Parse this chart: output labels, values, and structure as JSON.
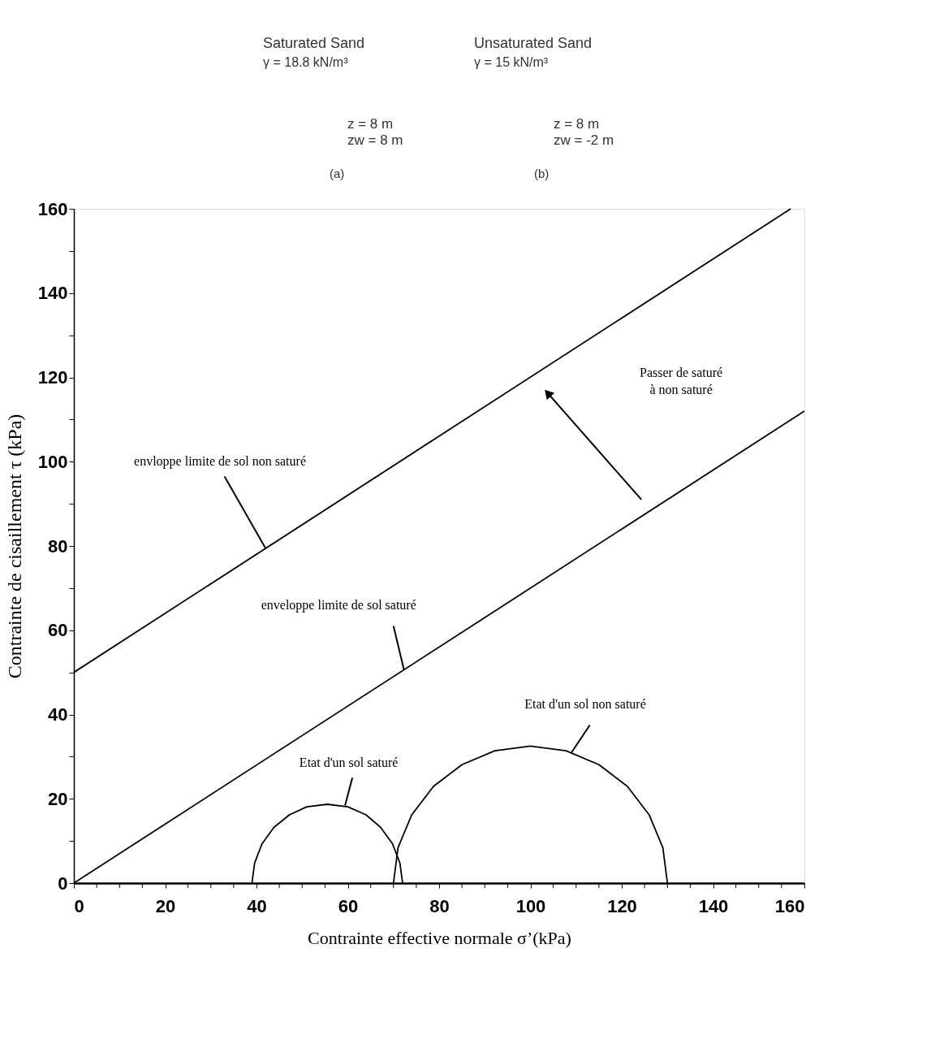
{
  "chart_data": {
    "type": "line",
    "xlabel": "Contrainte effective normale σ’(kPa)",
    "ylabel": "Contrainte de cisaillement  τ (kPa)",
    "xlim": [
      0,
      160
    ],
    "ylim": [
      0,
      160
    ],
    "xticks": [
      0,
      {
        "value": 5,
        "label": null
      },
      {
        "value": 10,
        "label": null
      },
      {
        "value": 15,
        "label": null
      },
      20,
      {
        "value": 25,
        "label": null
      },
      {
        "value": 30,
        "label": null
      },
      {
        "value": 35,
        "label": null
      },
      40,
      {
        "value": 45,
        "label": null
      },
      {
        "value": 50,
        "label": null
      },
      {
        "value": 55,
        "label": null
      },
      60,
      {
        "value": 65,
        "label": null
      },
      {
        "value": 70,
        "label": null
      },
      {
        "value": 75,
        "label": null
      },
      80,
      {
        "value": 85,
        "label": null
      },
      {
        "value": 90,
        "label": null
      },
      {
        "value": 95,
        "label": null
      },
      100,
      {
        "value": 105,
        "label": null
      },
      {
        "value": 110,
        "label": null
      },
      {
        "value": 115,
        "label": null
      },
      120,
      {
        "value": 125,
        "label": null
      },
      {
        "value": 130,
        "label": null
      },
      {
        "value": 135,
        "label": null
      },
      140,
      {
        "value": 145,
        "label": null
      },
      {
        "value": 150,
        "label": null
      },
      {
        "value": 155,
        "label": null
      },
      160
    ],
    "yticks": [
      0,
      {
        "value": 10,
        "label": null
      },
      20,
      {
        "value": 30,
        "label": null
      },
      40,
      {
        "value": 50,
        "label": null
      },
      60,
      {
        "value": 70,
        "label": null
      },
      80,
      {
        "value": 90,
        "label": null
      },
      100,
      {
        "value": 110,
        "label": null
      },
      120,
      {
        "value": 130,
        "label": null
      },
      140,
      {
        "value": 150,
        "label": null
      },
      160
    ],
    "grid": false,
    "legend": false,
    "marker": "none",
    "line_style": "solid",
    "series": [
      {
        "color": "#000000",
        "x": [
          0,
          157
        ],
        "values": [
          50,
          160
        ]
      },
      {
        "color": "#000000",
        "x": [
          0,
          160
        ],
        "values": [
          0,
          112
        ]
      },
      {
        "color": "#000000",
        "x": [
          72,
          71.4,
          69.8,
          67.2,
          64,
          60,
          55.5,
          51,
          47.2,
          43.8,
          41.2,
          39.6,
          39
        ],
        "values": [
          0,
          4.8,
          9.3,
          13.2,
          16.2,
          18.1,
          18.7,
          18.1,
          16.2,
          13.2,
          9.3,
          4.8,
          0
        ]
      },
      {
        "color": "#000000",
        "x": [
          130,
          129,
          126,
          121.2,
          115,
          107.8,
          100,
          92.2,
          85,
          78.8,
          74,
          71,
          70
        ],
        "values": [
          0,
          8.4,
          16.2,
          23,
          28.1,
          31.4,
          32.5,
          31.4,
          28.1,
          23,
          16.2,
          8.4,
          0
        ]
      }
    ],
    "annotations": [
      "Saturated Sand",
      "γ = 18.8 kN/m³",
      "z = 8 m",
      "zw = 8 m",
      "(a)",
      "Unsaturated Sand",
      "γ = 15 kN/m³",
      "z = 8 m",
      "zw = -2 m",
      "(b)",
      {
        "text": "envloppe limite de sol non saturé",
        "x": 42,
        "y": 79.4
      },
      {
        "text": "enveloppe limite de sol saturé",
        "x": 72.3,
        "y": 50.6
      },
      {
        "text": "Etat d'un sol saturé",
        "x": 59.4,
        "y": 18.4
      },
      {
        "text": "Etat d'un sol non saturé",
        "x": 109,
        "y": 31
      },
      "Passer de saturé\nà non saturé"
    ]
  }
}
